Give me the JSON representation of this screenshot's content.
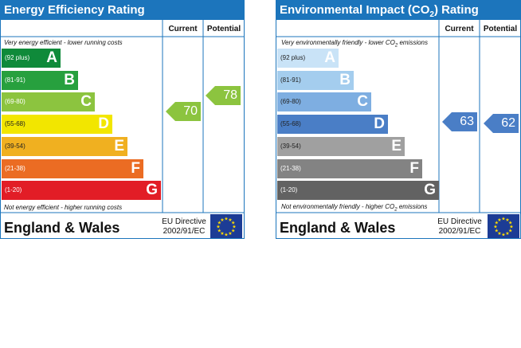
{
  "chart_data": [
    {
      "type": "bar",
      "title": "Energy Efficiency Rating",
      "columns": [
        "Current",
        "Potential"
      ],
      "top_note": "Very energy efficient - lower running costs",
      "bottom_note": "Not energy efficient - higher running costs",
      "categories": [
        "A",
        "B",
        "C",
        "D",
        "E",
        "F",
        "G"
      ],
      "ranges": [
        "(92 plus)",
        "(81-91)",
        "(69-80)",
        "(55-68)",
        "(39-54)",
        "(21-38)",
        "(1-20)"
      ],
      "band_colors": [
        "#0f8a3a",
        "#27a03e",
        "#8cc43f",
        "#f2e600",
        "#f0b020",
        "#eb6c23",
        "#e21d26"
      ],
      "current": {
        "value": 70,
        "band": "C",
        "color": "#8cc43f"
      },
      "potential": {
        "value": 78,
        "band": "C",
        "color": "#8cc43f"
      },
      "footer": {
        "region": "England & Wales",
        "directive_line1": "EU Directive",
        "directive_line2": "2002/91/EC"
      }
    },
    {
      "type": "bar",
      "title": "Environmental Impact (CO",
      "title_sub": "2",
      "title_end": ") Rating",
      "columns": [
        "Current",
        "Potential"
      ],
      "top_note": "Very environmentally friendly - lower CO",
      "top_note_sub": "2",
      "top_note_end": " emissions",
      "bottom_note": "Not environmentally friendly - higher CO",
      "bottom_note_sub": "2",
      "bottom_note_end": " emissions",
      "categories": [
        "A",
        "B",
        "C",
        "D",
        "E",
        "F",
        "G"
      ],
      "ranges": [
        "(92 plus)",
        "(81-91)",
        "(69-80)",
        "(55-68)",
        "(39-54)",
        "(21-38)",
        "(1-20)"
      ],
      "band_colors": [
        "#c9e3f7",
        "#a4cdee",
        "#7eaee1",
        "#4a7ec6",
        "#a0a0a0",
        "#838383",
        "#626262"
      ],
      "current": {
        "value": 63,
        "band": "D",
        "color": "#4a7ec6"
      },
      "potential": {
        "value": 62,
        "band": "D",
        "color": "#4a7ec6"
      },
      "footer": {
        "region": "England & Wales",
        "directive_line1": "EU Directive",
        "directive_line2": "2002/91/EC"
      }
    }
  ]
}
